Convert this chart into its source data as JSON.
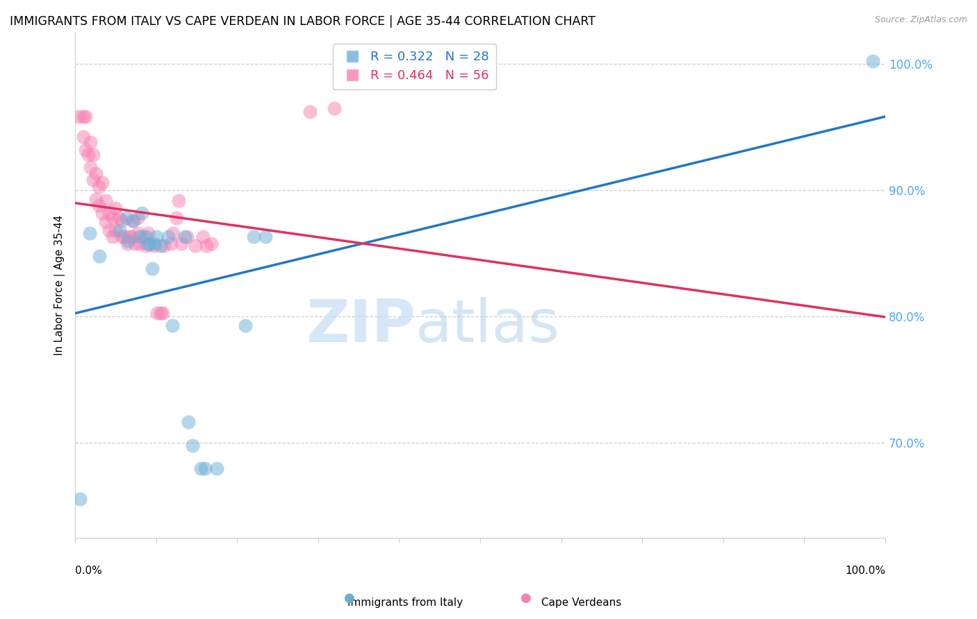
{
  "title": "IMMIGRANTS FROM ITALY VS CAPE VERDEAN IN LABOR FORCE | AGE 35-44 CORRELATION CHART",
  "source": "Source: ZipAtlas.com",
  "ylabel": "In Labor Force | Age 35-44",
  "legend_italy": "R = 0.322   N = 28",
  "legend_cv": "R = 0.464   N = 56",
  "legend_label_italy": "Immigrants from Italy",
  "legend_label_cv": "Cape Verdeans",
  "italy_color": "#6baed6",
  "cv_color": "#f87fb0",
  "italy_line_color": "#2176c7",
  "cv_line_color": "#e03060",
  "watermark_zip": "ZIP",
  "watermark_atlas": "atlas",
  "italy_x": [
    0.018,
    0.03,
    0.055,
    0.063,
    0.065,
    0.072,
    0.08,
    0.082,
    0.087,
    0.09,
    0.092,
    0.095,
    0.098,
    0.1,
    0.105,
    0.115,
    0.12,
    0.135,
    0.14,
    0.145,
    0.155,
    0.16,
    0.175,
    0.21,
    0.22,
    0.235,
    0.985,
    0.006
  ],
  "italy_y": [
    0.866,
    0.848,
    0.868,
    0.878,
    0.86,
    0.876,
    0.863,
    0.882,
    0.863,
    0.858,
    0.857,
    0.838,
    0.858,
    0.863,
    0.856,
    0.863,
    0.793,
    0.863,
    0.717,
    0.698,
    0.68,
    0.68,
    0.68,
    0.793,
    0.863,
    0.863,
    1.002,
    0.656
  ],
  "cv_x": [
    0.004,
    0.01,
    0.01,
    0.013,
    0.013,
    0.016,
    0.019,
    0.019,
    0.022,
    0.022,
    0.026,
    0.026,
    0.029,
    0.029,
    0.033,
    0.033,
    0.038,
    0.038,
    0.042,
    0.042,
    0.046,
    0.046,
    0.05,
    0.05,
    0.054,
    0.057,
    0.057,
    0.061,
    0.064,
    0.067,
    0.07,
    0.07,
    0.074,
    0.077,
    0.077,
    0.08,
    0.085,
    0.087,
    0.09,
    0.098,
    0.101,
    0.105,
    0.108,
    0.11,
    0.118,
    0.121,
    0.125,
    0.128,
    0.131,
    0.138,
    0.148,
    0.158,
    0.162,
    0.168,
    0.29,
    0.32
  ],
  "cv_y": [
    0.958,
    0.942,
    0.958,
    0.932,
    0.958,
    0.928,
    0.918,
    0.938,
    0.908,
    0.928,
    0.893,
    0.913,
    0.888,
    0.903,
    0.882,
    0.906,
    0.875,
    0.892,
    0.868,
    0.882,
    0.878,
    0.863,
    0.868,
    0.886,
    0.878,
    0.863,
    0.876,
    0.863,
    0.858,
    0.863,
    0.863,
    0.876,
    0.858,
    0.866,
    0.878,
    0.858,
    0.863,
    0.856,
    0.866,
    0.856,
    0.803,
    0.803,
    0.803,
    0.856,
    0.858,
    0.866,
    0.878,
    0.892,
    0.858,
    0.863,
    0.856,
    0.863,
    0.856,
    0.858,
    0.962,
    0.965
  ],
  "xlim": [
    0.0,
    1.0
  ],
  "ylim": [
    0.625,
    1.025
  ],
  "yticks": [
    0.7,
    0.8,
    0.9,
    1.0
  ],
  "ytick_labels": [
    "70.0%",
    "80.0%",
    "90.0%",
    "100.0%"
  ],
  "grid_color": "#cccccc",
  "spine_color": "#cccccc"
}
